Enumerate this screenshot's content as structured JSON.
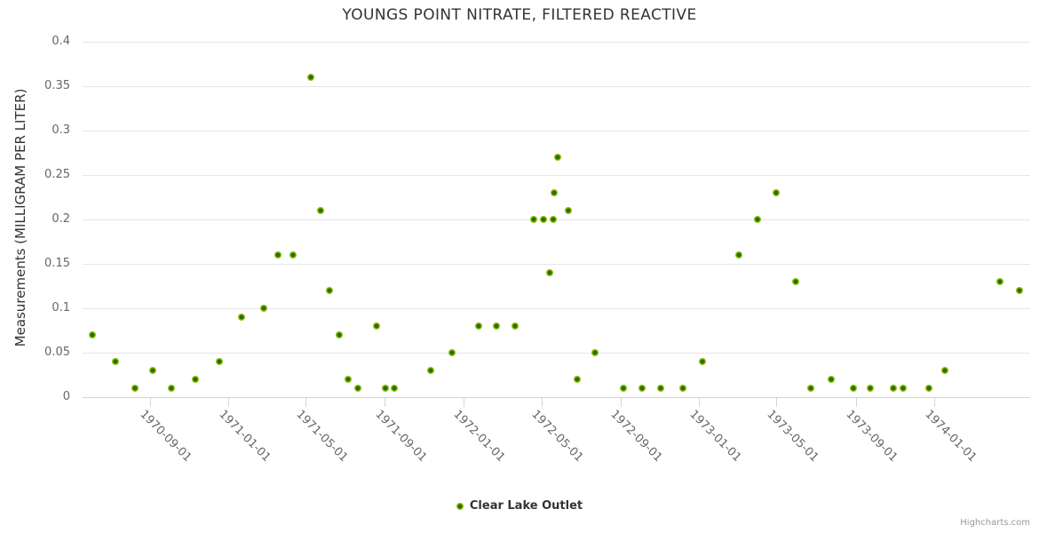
{
  "credits": "Highcharts.com",
  "colors": {
    "marker_outer": "#8bc30e",
    "marker_inner": "#2f6b02",
    "grid": "#e6e6e6",
    "axis_line": "#ccd6eb",
    "tick_label": "#666666",
    "text": "#333333",
    "credits_color": "#999999"
  },
  "chart_data": {
    "type": "scatter",
    "title": "YOUNGS POINT NITRATE, FILTERED REACTIVE",
    "xlabel": "",
    "ylabel": "Measurements (MILLIGRAM PER LITER)",
    "ylim": [
      0,
      0.4
    ],
    "y_ticks": [
      0,
      0.05,
      0.1,
      0.15,
      0.2,
      0.25,
      0.3,
      0.35,
      0.4
    ],
    "x_range": [
      "1970-05-19",
      "1974-05-29"
    ],
    "x_ticks": [
      "1970-09-01",
      "1971-01-01",
      "1971-05-01",
      "1971-09-01",
      "1972-01-01",
      "1972-05-01",
      "1972-09-01",
      "1973-01-01",
      "1973-05-01",
      "1973-09-01",
      "1974-01-01"
    ],
    "grid": true,
    "legend_position": "bottom-center",
    "legend": "Clear Lake Outlet",
    "series": [
      {
        "name": "Clear Lake Outlet",
        "points": [
          [
            "1970-06-03",
            0.07
          ],
          [
            "1970-07-09",
            0.04
          ],
          [
            "1970-08-09",
            0.01
          ],
          [
            "1970-09-05",
            0.03
          ],
          [
            "1970-10-04",
            0.01
          ],
          [
            "1970-11-10",
            0.02
          ],
          [
            "1970-12-17",
            0.04
          ],
          [
            "1971-01-21",
            0.09
          ],
          [
            "1971-02-24",
            0.1
          ],
          [
            "1971-03-18",
            0.16
          ],
          [
            "1971-04-11",
            0.16
          ],
          [
            "1971-05-08",
            0.36
          ],
          [
            "1971-05-24",
            0.21
          ],
          [
            "1971-06-06",
            0.12
          ],
          [
            "1971-06-21",
            0.07
          ],
          [
            "1971-07-05",
            0.02
          ],
          [
            "1971-07-20",
            0.01
          ],
          [
            "1971-08-18",
            0.08
          ],
          [
            "1971-09-01",
            0.01
          ],
          [
            "1971-09-15",
            0.01
          ],
          [
            "1971-11-11",
            0.03
          ],
          [
            "1971-12-13",
            0.05
          ],
          [
            "1972-01-24",
            0.08
          ],
          [
            "1972-02-21",
            0.08
          ],
          [
            "1972-03-21",
            0.08
          ],
          [
            "1972-04-19",
            0.2
          ],
          [
            "1972-05-04",
            0.2
          ],
          [
            "1972-05-13",
            0.14
          ],
          [
            "1972-05-19",
            0.2
          ],
          [
            "1972-05-20",
            0.23
          ],
          [
            "1972-05-26",
            0.27
          ],
          [
            "1972-06-11",
            0.21
          ],
          [
            "1972-06-25",
            0.02
          ],
          [
            "1972-07-22",
            0.05
          ],
          [
            "1972-09-05",
            0.01
          ],
          [
            "1972-10-04",
            0.01
          ],
          [
            "1972-11-01",
            0.01
          ],
          [
            "1972-12-06",
            0.01
          ],
          [
            "1973-01-05",
            0.04
          ],
          [
            "1973-03-03",
            0.16
          ],
          [
            "1973-04-01",
            0.2
          ],
          [
            "1973-04-30",
            0.23
          ],
          [
            "1973-05-30",
            0.13
          ],
          [
            "1973-06-22",
            0.01
          ],
          [
            "1973-07-24",
            0.02
          ],
          [
            "1973-08-27",
            0.01
          ],
          [
            "1973-09-23",
            0.01
          ],
          [
            "1973-10-29",
            0.01
          ],
          [
            "1973-11-13",
            0.01
          ],
          [
            "1973-12-23",
            0.01
          ],
          [
            "1974-01-16",
            0.03
          ],
          [
            "1974-04-12",
            0.13
          ],
          [
            "1974-05-12",
            0.12
          ]
        ]
      }
    ]
  }
}
